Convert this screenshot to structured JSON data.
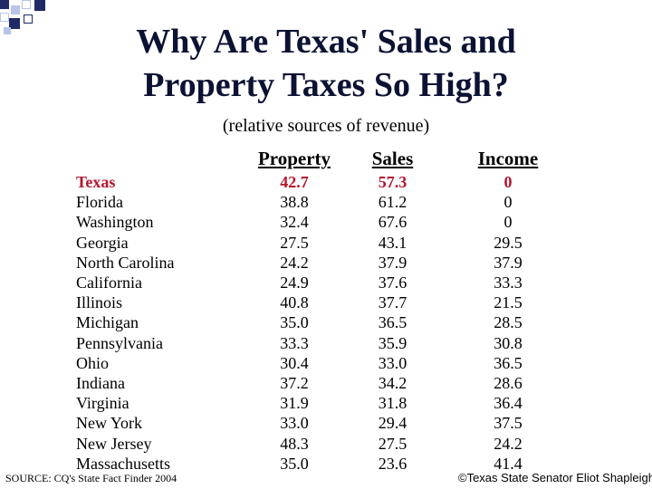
{
  "slide": {
    "title_line1": "Why Are Texas' Sales and",
    "title_line2": "Property Taxes So High?",
    "subtitle": "(relative sources of revenue)"
  },
  "table": {
    "headers": [
      "Property",
      "Sales",
      "Income"
    ],
    "highlight_color": "#b5162d",
    "rows": [
      {
        "state": "Texas",
        "property": "42.7",
        "sales": "57.3",
        "income": "0"
      },
      {
        "state": "Florida",
        "property": "38.8",
        "sales": "61.2",
        "income": "0"
      },
      {
        "state": "Washington",
        "property": "32.4",
        "sales": "67.6",
        "income": "0"
      },
      {
        "state": "Georgia",
        "property": "27.5",
        "sales": "43.1",
        "income": "29.5"
      },
      {
        "state": "North Carolina",
        "property": "24.2",
        "sales": "37.9",
        "income": "37.9"
      },
      {
        "state": "California",
        "property": "24.9",
        "sales": "37.6",
        "income": "33.3"
      },
      {
        "state": "Illinois",
        "property": "40.8",
        "sales": "37.7",
        "income": "21.5"
      },
      {
        "state": "Michigan",
        "property": "35.0",
        "sales": "36.5",
        "income": "28.5"
      },
      {
        "state": "Pennsylvania",
        "property": "33.3",
        "sales": "35.9",
        "income": "30.8"
      },
      {
        "state": "Ohio",
        "property": "30.4",
        "sales": "33.0",
        "income": "36.5"
      },
      {
        "state": "Indiana",
        "property": "37.2",
        "sales": "34.2",
        "income": "28.6"
      },
      {
        "state": "Virginia",
        "property": "31.9",
        "sales": "31.8",
        "income": "36.4"
      },
      {
        "state": "New York",
        "property": "33.0",
        "sales": "29.4",
        "income": "37.5"
      },
      {
        "state": "New Jersey",
        "property": "48.3",
        "sales": "27.5",
        "income": "24.2"
      },
      {
        "state": "Massachusetts",
        "property": "35.0",
        "sales": "23.6",
        "income": "41.4"
      }
    ]
  },
  "footer": {
    "source": "SOURCE: CQ's State Fact Finder 2004",
    "credit": "©Texas State Senator Eliot Shapleigh"
  }
}
